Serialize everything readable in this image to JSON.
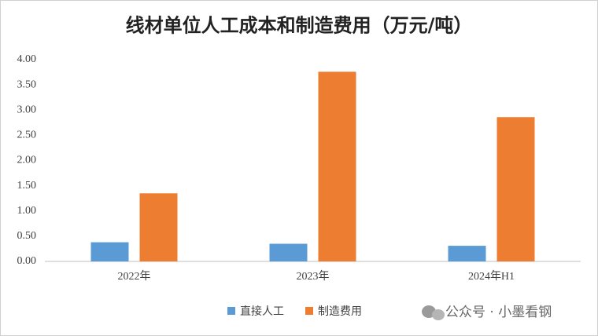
{
  "chart_data": {
    "type": "bar",
    "title": "线材单位人工成本和制造费用（万元/吨）",
    "categories": [
      "2022年",
      "2023年",
      "2024年H1"
    ],
    "series": [
      {
        "name": "直接人工",
        "color": "#5b9bd5",
        "values": [
          0.38,
          0.35,
          0.31
        ]
      },
      {
        "name": "制造费用",
        "color": "#ed7d31",
        "values": [
          1.35,
          3.76,
          2.86
        ]
      }
    ],
    "ylim": [
      0,
      4
    ],
    "yticks": [
      {
        "value": 0,
        "label": "0.00"
      },
      {
        "value": 0.5,
        "label": "0.50"
      },
      {
        "value": 1,
        "label": "1.00"
      },
      {
        "value": 1.5,
        "label": "1.50"
      },
      {
        "value": 2,
        "label": "2.00"
      },
      {
        "value": 2.5,
        "label": "2.50"
      },
      {
        "value": 3,
        "label": "3.00"
      },
      {
        "value": 3.5,
        "label": "3.50"
      },
      {
        "value": 4,
        "label": "4.00"
      }
    ],
    "grid": false,
    "legend": "bottom",
    "watermark": "公众号 · 小墨看钢"
  }
}
